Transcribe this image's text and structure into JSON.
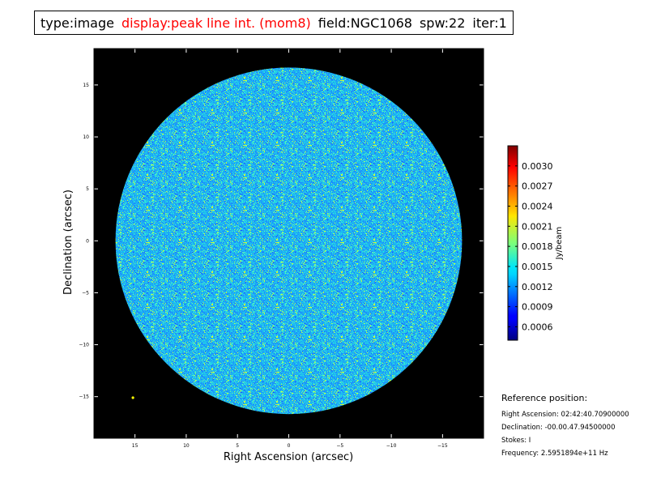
{
  "header": {
    "type": "type:image",
    "display": "display:peak line int. (mom8)",
    "field": "field:NGC1068",
    "spw": "spw:22",
    "iter": "iter:1",
    "highlight_color": "#ff0000"
  },
  "chart_data": {
    "type": "heatmap",
    "title": "",
    "xlabel": "Right Ascension (arcsec)",
    "ylabel": "Declination (arcsec)",
    "xlim": [
      19,
      -19
    ],
    "ylim": [
      -19,
      18.5
    ],
    "x_ticks": [
      15,
      10,
      5,
      0,
      -5,
      -10,
      -15
    ],
    "x_tick_labels": [
      "15",
      "10",
      "5",
      "0",
      "−5",
      "−10",
      "−15"
    ],
    "y_ticks": [
      15,
      10,
      5,
      0,
      -5,
      -10,
      -15
    ],
    "y_tick_labels": [
      "15",
      "10",
      "5",
      "0",
      "−5",
      "−10",
      "−15"
    ],
    "image_region": {
      "shape": "circle",
      "center": [
        0,
        0
      ],
      "radius_arcsec": 16.9
    },
    "background_color": "#000000",
    "colormap": "jet",
    "marker": {
      "x": 15.2,
      "y": -15.1,
      "color": "#ffff00"
    },
    "colorbar": {
      "label": "Jy/beam",
      "range": [
        0.0004,
        0.0033
      ],
      "ticks": [
        0.0006,
        0.0009,
        0.0012,
        0.0015,
        0.0018,
        0.0021,
        0.0024,
        0.0027,
        0.003
      ],
      "tick_labels": [
        "0.0006",
        "0.0009",
        "0.0012",
        "0.0015",
        "0.0018",
        "0.0021",
        "0.0024",
        "0.0027",
        "0.0030"
      ]
    }
  },
  "reference": {
    "title": "Reference position:",
    "ra": "Right Ascension: 02:42:40.70900000",
    "dec": "Declination: -00.00.47.94500000",
    "stokes": "Stokes: I",
    "frequency": "Frequency: 2.5951894e+11 Hz"
  }
}
